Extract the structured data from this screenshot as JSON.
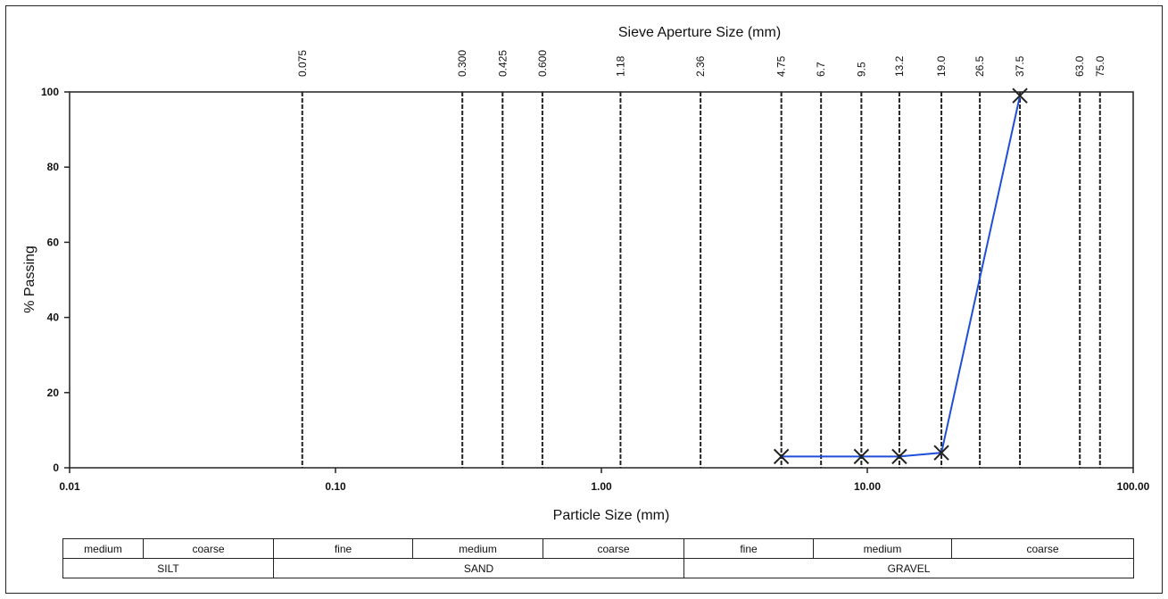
{
  "chart_data": {
    "type": "line",
    "title": "Sieve Aperture Size (mm)",
    "xlabel": "Particle Size (mm)",
    "ylabel": "% Passing",
    "xscale": "log",
    "xlim": [
      0.01,
      100
    ],
    "ylim": [
      0,
      100
    ],
    "x_ticks": [
      "0.01",
      "0.10",
      "1.00",
      "10.00",
      "100.00"
    ],
    "y_ticks": [
      "0",
      "20",
      "40",
      "60",
      "80",
      "100"
    ],
    "sieve_sizes": [
      {
        "label": "0.075",
        "value": 0.075
      },
      {
        "label": "0.300",
        "value": 0.3
      },
      {
        "label": "0.425",
        "value": 0.425
      },
      {
        "label": "0.600",
        "value": 0.6
      },
      {
        "label": "1.18",
        "value": 1.18
      },
      {
        "label": "2.36",
        "value": 2.36
      },
      {
        "label": "4.75",
        "value": 4.75
      },
      {
        "label": "6.7",
        "value": 6.7
      },
      {
        "label": "9.5",
        "value": 9.5
      },
      {
        "label": "13.2",
        "value": 13.2
      },
      {
        "label": "19.0",
        "value": 19.0
      },
      {
        "label": "26.5",
        "value": 26.5
      },
      {
        "label": "37.5",
        "value": 37.5
      },
      {
        "label": "63.0",
        "value": 63.0
      },
      {
        "label": "75.0",
        "value": 75.0
      }
    ],
    "series": [
      {
        "x": [
          4.75,
          9.5,
          13.2,
          19.0,
          37.5
        ],
        "y": [
          3,
          3,
          3,
          4,
          99
        ],
        "color": "#1f4fd6",
        "marker": "x"
      }
    ],
    "grid": "sieve lines only"
  },
  "classification": {
    "subdivisions": [
      "medium",
      "coarse",
      "fine",
      "medium",
      "coarse",
      "fine",
      "medium",
      "coarse"
    ],
    "groups": [
      "SILT",
      "SAND",
      "GRAVEL"
    ]
  }
}
